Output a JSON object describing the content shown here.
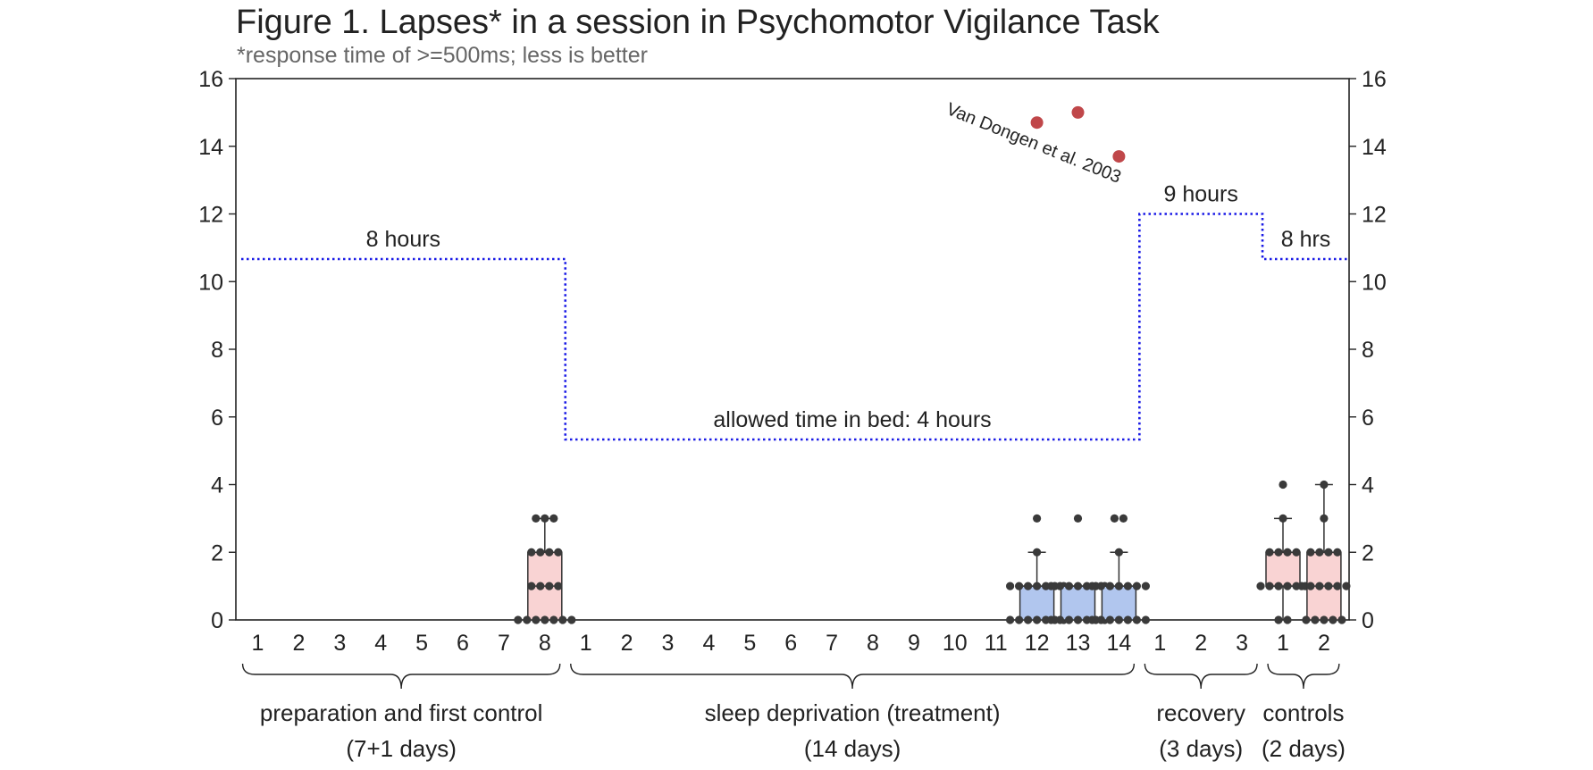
{
  "chart_data": {
    "type": "box",
    "title": "Figure 1. Lapses* in a session in Psychomotor Vigilance Task",
    "subtitle": "*response time of >=500ms; less is better",
    "xlabel": "",
    "ylabel": "",
    "ylim": [
      0,
      16
    ],
    "yticks": [
      0,
      2,
      4,
      6,
      8,
      10,
      12,
      14,
      16
    ],
    "grid": false,
    "legend": "none",
    "days": [
      {
        "label": "1",
        "group": 0
      },
      {
        "label": "2",
        "group": 0
      },
      {
        "label": "3",
        "group": 0
      },
      {
        "label": "4",
        "group": 0
      },
      {
        "label": "5",
        "group": 0
      },
      {
        "label": "6",
        "group": 0
      },
      {
        "label": "7",
        "group": 0
      },
      {
        "label": "8",
        "group": 0
      },
      {
        "label": "1",
        "group": 1
      },
      {
        "label": "2",
        "group": 1
      },
      {
        "label": "3",
        "group": 1
      },
      {
        "label": "4",
        "group": 1
      },
      {
        "label": "5",
        "group": 1
      },
      {
        "label": "6",
        "group": 1
      },
      {
        "label": "7",
        "group": 1
      },
      {
        "label": "8",
        "group": 1
      },
      {
        "label": "9",
        "group": 1
      },
      {
        "label": "10",
        "group": 1
      },
      {
        "label": "11",
        "group": 1
      },
      {
        "label": "12",
        "group": 1
      },
      {
        "label": "13",
        "group": 1
      },
      {
        "label": "14",
        "group": 1
      },
      {
        "label": "1",
        "group": 2
      },
      {
        "label": "2",
        "group": 2
      },
      {
        "label": "3",
        "group": 2
      },
      {
        "label": "1",
        "group": 3
      },
      {
        "label": "2",
        "group": 3
      }
    ],
    "groups": [
      {
        "line1": "preparation and first control",
        "line2": "(7+1 days)",
        "first": 0,
        "last": 7
      },
      {
        "line1": "sleep deprivation (treatment)",
        "line2": "(14 days)",
        "first": 8,
        "last": 21
      },
      {
        "line1": "recovery",
        "line2": "(3 days)",
        "first": 22,
        "last": 24
      },
      {
        "line1": "controls",
        "line2": "(2 days)",
        "first": 25,
        "last": 26
      }
    ],
    "boxes": [
      {
        "day_index": 7,
        "q1": 0,
        "median": 1,
        "q3": 2,
        "whisker_low": 0,
        "whisker_high": 3,
        "color": "#f9d3d3",
        "points": [
          0,
          0,
          0,
          0,
          0,
          0,
          0,
          1,
          1,
          1,
          1,
          2,
          2,
          2,
          2,
          3,
          3,
          3
        ]
      },
      {
        "day_index": 19,
        "q1": 0,
        "median": 1,
        "q3": 1,
        "whisker_low": 0,
        "whisker_high": 2,
        "color": "#b1c6ee",
        "points": [
          0,
          0,
          0,
          0,
          0,
          0,
          0,
          1,
          1,
          1,
          1,
          1,
          1,
          1,
          2,
          3
        ]
      },
      {
        "day_index": 20,
        "q1": 0,
        "median": 1,
        "q3": 1,
        "whisker_low": 0,
        "whisker_high": 1,
        "color": "#b1c6ee",
        "points": [
          0,
          0,
          0,
          0,
          0,
          0,
          0,
          1,
          1,
          1,
          1,
          1,
          1,
          1,
          3
        ]
      },
      {
        "day_index": 21,
        "q1": 0,
        "median": 1,
        "q3": 1,
        "whisker_low": 0,
        "whisker_high": 2,
        "color": "#b1c6ee",
        "points": [
          0,
          0,
          0,
          0,
          0,
          0,
          0,
          1,
          1,
          1,
          1,
          1,
          1,
          1,
          2,
          3,
          3
        ]
      },
      {
        "day_index": 25,
        "q1": 1,
        "median": 1,
        "q3": 2,
        "whisker_low": 0,
        "whisker_high": 3,
        "color": "#f9d3d3",
        "points": [
          0,
          0,
          1,
          1,
          1,
          1,
          1,
          1,
          2,
          2,
          2,
          2,
          3,
          4
        ]
      },
      {
        "day_index": 26,
        "q1": 0,
        "median": 1,
        "q3": 2,
        "whisker_low": 0,
        "whisker_high": 4,
        "color": "#f9d3d3",
        "points": [
          0,
          0,
          0,
          0,
          0,
          1,
          1,
          1,
          1,
          1,
          1,
          2,
          2,
          2,
          2,
          3,
          4
        ]
      }
    ],
    "time_in_bed": {
      "color": "#1a1ae6",
      "segments": [
        {
          "first": 0,
          "last": 7,
          "hours": 8,
          "label": "8 hours"
        },
        {
          "first": 8,
          "last": 21,
          "hours": 4,
          "label": "allowed time in bed: 4 hours"
        },
        {
          "first": 22,
          "last": 24,
          "hours": 9,
          "label": "9 hours"
        },
        {
          "first": 25,
          "last": 26,
          "hours": 8,
          "label": "8 hrs"
        }
      ]
    },
    "reference": {
      "label": "Van Dongen et al. 2003",
      "color": "#c0474a",
      "points": [
        {
          "day_index": 19,
          "value": 14.7
        },
        {
          "day_index": 20,
          "value": 15.0
        },
        {
          "day_index": 21,
          "value": 13.7
        }
      ]
    }
  }
}
